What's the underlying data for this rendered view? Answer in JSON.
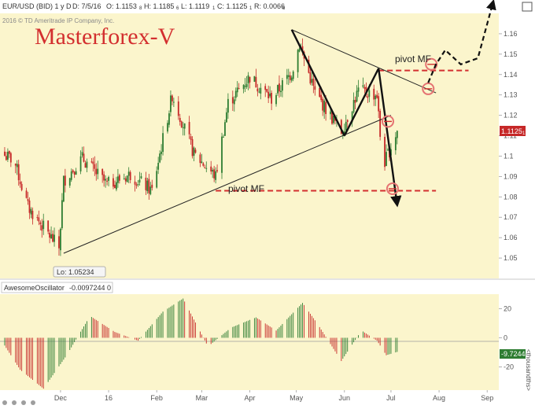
{
  "header": {
    "symbol": "EUR/USD (BID) 1 y D",
    "date": "D: 7/5/16",
    "open": "O: 1.1153",
    "open_sub": "8",
    "high": "H: 1.1185",
    "high_sub": "6",
    "low": "L: 1.1119",
    "low_sub": "1",
    "close": "C: 1.1125",
    "close_sub": "1",
    "range": "R: 0.0066",
    "range_sub": "5",
    "copyright": "2016 © TD Ameritrade IP Company, Inc.",
    "watermark": "Masterforex-V"
  },
  "indicator": {
    "name": "AwesomeOscillator",
    "value": "-0.0097244",
    "param": "0",
    "current_label": "-9.7244",
    "units_label": "<thousandths>"
  },
  "annotations": {
    "pivot_low_label": "pivot MF",
    "pivot_high_label": "pivot MF",
    "low_marker": "Lo: 1.05234",
    "current_price": "1.1125",
    "current_price_sub": "1"
  },
  "colors": {
    "background": "#fbf5cc",
    "axis_text": "#555555",
    "up": "#2e7d32",
    "down": "#c62828",
    "pivot_line": "#d32f2f",
    "circle": "#e57373",
    "trend": "#222222",
    "price_badge": "#c62828",
    "osc_badge": "#2e7d32",
    "watermark": "#d32f2f"
  },
  "chart_data": [
    {
      "type": "candlestick",
      "title": "EUR/USD (BID) 1 y D",
      "x_ticks": [
        {
          "label": "Dec",
          "date": "2015-12-01"
        },
        {
          "label": "16",
          "date": "2016-01-01"
        },
        {
          "label": "Feb",
          "date": "2016-02-01"
        },
        {
          "label": "Mar",
          "date": "2016-03-01"
        },
        {
          "label": "Apr",
          "date": "2016-04-01"
        },
        {
          "label": "May",
          "date": "2016-05-01"
        },
        {
          "label": "Jun",
          "date": "2016-06-01"
        },
        {
          "label": "Jul",
          "date": "2016-07-01"
        },
        {
          "label": "Aug",
          "date": "2016-08-01"
        },
        {
          "label": "Sep",
          "date": "2016-09-01"
        }
      ],
      "y_ticks": [
        1.05,
        1.06,
        1.07,
        1.08,
        1.09,
        1.1,
        1.11,
        1.12,
        1.13,
        1.14,
        1.15,
        1.16
      ],
      "ylim": [
        1.04,
        1.17
      ],
      "grid": false,
      "close_path": [
        {
          "date": "2015-10-24",
          "close": 1.101
        },
        {
          "date": "2015-11-01",
          "close": 1.098
        },
        {
          "date": "2015-11-10",
          "close": 1.075
        },
        {
          "date": "2015-11-20",
          "close": 1.065
        },
        {
          "date": "2015-11-30",
          "close": 1.055
        },
        {
          "date": "2015-12-03",
          "close": 1.088
        },
        {
          "date": "2015-12-15",
          "close": 1.099
        },
        {
          "date": "2015-12-31",
          "close": 1.086
        },
        {
          "date": "2016-01-15",
          "close": 1.091
        },
        {
          "date": "2016-01-29",
          "close": 1.083
        },
        {
          "date": "2016-02-11",
          "close": 1.13
        },
        {
          "date": "2016-02-25",
          "close": 1.101
        },
        {
          "date": "2016-03-10",
          "close": 1.09
        },
        {
          "date": "2016-03-18",
          "close": 1.126
        },
        {
          "date": "2016-04-01",
          "close": 1.139
        },
        {
          "date": "2016-04-15",
          "close": 1.128
        },
        {
          "date": "2016-04-28",
          "close": 1.141
        },
        {
          "date": "2016-05-03",
          "close": 1.155
        },
        {
          "date": "2016-05-13",
          "close": 1.131
        },
        {
          "date": "2016-05-30",
          "close": 1.112
        },
        {
          "date": "2016-06-10",
          "close": 1.132
        },
        {
          "date": "2016-06-22",
          "close": 1.13
        },
        {
          "date": "2016-06-24",
          "close": 1.11
        },
        {
          "date": "2016-06-27",
          "close": 1.097
        },
        {
          "date": "2016-07-05",
          "close": 1.1125
        }
      ],
      "current_price": 1.1125,
      "low": {
        "date": "2015-12-03",
        "value": 1.05234
      }
    },
    {
      "type": "bar",
      "title": "AwesomeOscillator",
      "ylabel": "<thousandths>",
      "y_ticks": [
        20,
        0,
        -20
      ],
      "ylim": [
        -36,
        30
      ],
      "current": -9.7244,
      "values_path": [
        {
          "date": "2015-10-24",
          "value": -2
        },
        {
          "date": "2015-11-05",
          "value": -22
        },
        {
          "date": "2015-11-20",
          "value": -35
        },
        {
          "date": "2015-12-05",
          "value": -12
        },
        {
          "date": "2015-12-20",
          "value": 15
        },
        {
          "date": "2016-01-05",
          "value": 4
        },
        {
          "date": "2016-01-20",
          "value": -2
        },
        {
          "date": "2016-02-05",
          "value": 18
        },
        {
          "date": "2016-02-18",
          "value": 27
        },
        {
          "date": "2016-03-05",
          "value": -6
        },
        {
          "date": "2016-03-20",
          "value": 7
        },
        {
          "date": "2016-04-05",
          "value": 14
        },
        {
          "date": "2016-04-18",
          "value": 5
        },
        {
          "date": "2016-05-05",
          "value": 24
        },
        {
          "date": "2016-05-15",
          "value": 9
        },
        {
          "date": "2016-05-30",
          "value": -16
        },
        {
          "date": "2016-06-12",
          "value": 5
        },
        {
          "date": "2016-06-22",
          "value": -2
        },
        {
          "date": "2016-06-28",
          "value": -12
        },
        {
          "date": "2016-07-05",
          "value": -9.7244
        }
      ]
    }
  ],
  "overlay": {
    "trendlines": [
      {
        "from": {
          "date": "2015-12-03",
          "value": 1.05234
        },
        "to": {
          "date": "2016-07-01",
          "value": 1.12
        }
      },
      {
        "from": {
          "date": "2016-04-28",
          "value": 1.162
        },
        "to": {
          "date": "2016-07-30",
          "value": 1.131
        }
      }
    ],
    "pattern_legs": [
      {
        "date": "2016-04-28",
        "value": 1.162
      },
      {
        "date": "2016-06-01",
        "value": 1.11
      },
      {
        "date": "2016-06-23",
        "value": 1.143
      },
      {
        "date": "2016-07-05",
        "value": 1.076
      }
    ],
    "pivots": [
      {
        "value": 1.083,
        "from": "2016-03-10",
        "to": "2016-07-30",
        "label": "pivot MF"
      },
      {
        "value": 1.142,
        "from": "2016-06-23",
        "to": "2016-08-20",
        "label": "pivot MF"
      }
    ],
    "circles": [
      {
        "date": "2016-06-29",
        "value": 1.117
      },
      {
        "date": "2016-07-02",
        "value": 1.084
      },
      {
        "date": "2016-07-25",
        "value": 1.133
      },
      {
        "date": "2016-07-27",
        "value": 1.145
      }
    ],
    "projection": [
      {
        "date": "2016-07-25",
        "value": 1.136
      },
      {
        "date": "2016-07-30",
        "value": 1.145
      },
      {
        "date": "2016-08-05",
        "value": 1.152
      },
      {
        "date": "2016-08-15",
        "value": 1.145
      },
      {
        "date": "2016-08-26",
        "value": 1.148
      },
      {
        "date": "2016-09-05",
        "value": 1.176
      }
    ]
  }
}
